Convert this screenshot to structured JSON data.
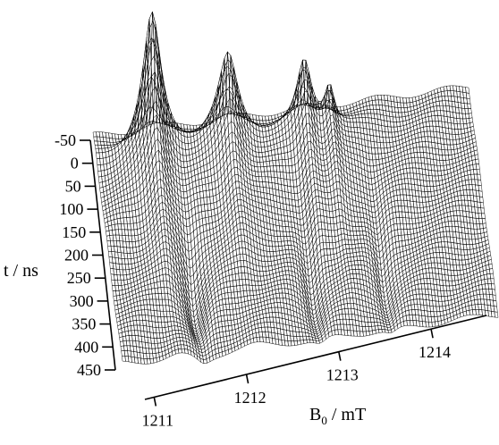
{
  "chart_data": {
    "type": "surface",
    "xlabel": "B0 / mT",
    "xlabel_main": "B",
    "xlabel_sub": "0",
    "xlabel_rest": " / mT",
    "ylabel": "t / ns",
    "x_ticks": [
      "1211",
      "1212",
      "1213",
      "1214"
    ],
    "y_ticks": [
      "-50",
      "0",
      "50",
      "100",
      "150",
      "200",
      "250",
      "300",
      "350",
      "400",
      "450"
    ],
    "xlim": [
      1210.9,
      1214.6
    ],
    "ylim": [
      -60,
      470
    ],
    "grid": false,
    "peaks": [
      {
        "b_field": 1211.45,
        "t_max": 0,
        "amplitude": 1.0,
        "width_mT": 0.11,
        "sign": "positive"
      },
      {
        "b_field": 1212.2,
        "t_max": 0,
        "amplitude": 0.62,
        "width_mT": 0.12,
        "sign": "positive"
      },
      {
        "b_field": 1212.95,
        "t_max": 0,
        "amplitude": 0.5,
        "width_mT": 0.09,
        "sign": "positive"
      },
      {
        "b_field": 1213.2,
        "t_max": 0,
        "amplitude": 0.3,
        "width_mT": 0.06,
        "sign": "positive"
      },
      {
        "b_field": 1211.7,
        "t_max": 300,
        "amplitude": -0.28,
        "width_mT": 0.1,
        "sign": "negative"
      },
      {
        "b_field": 1212.85,
        "t_max": 300,
        "amplitude": -0.22,
        "width_mT": 0.09,
        "sign": "negative"
      },
      {
        "b_field": 1213.55,
        "t_max": 300,
        "amplitude": -0.18,
        "width_mT": 0.08,
        "sign": "negative"
      }
    ]
  }
}
